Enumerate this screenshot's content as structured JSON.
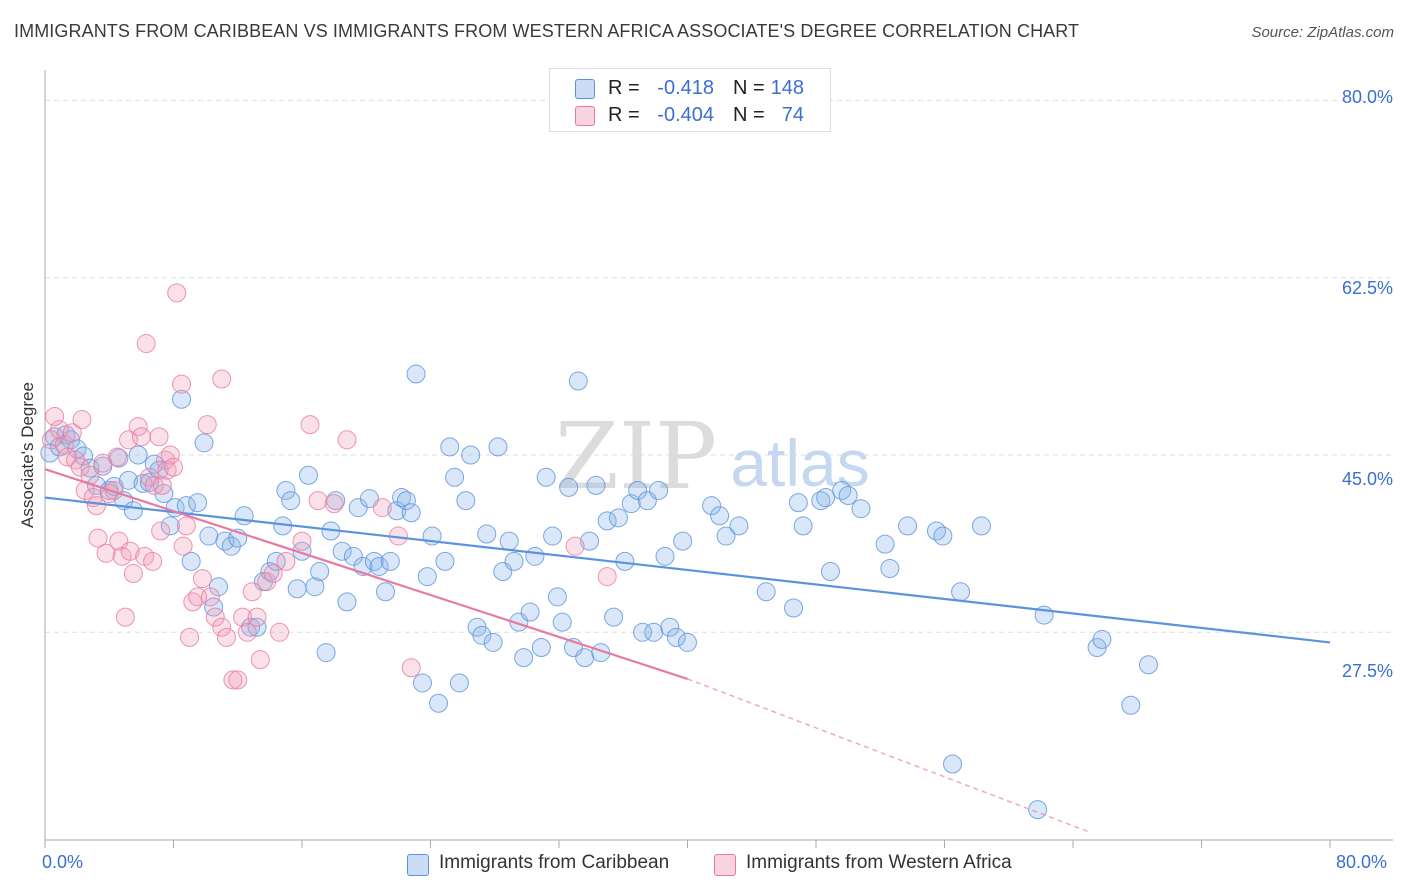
{
  "header": {
    "title": "IMMIGRANTS FROM CARIBBEAN VS IMMIGRANTS FROM WESTERN AFRICA ASSOCIATE'S DEGREE CORRELATION CHART",
    "source": "Source: ZipAtlas.com"
  },
  "watermark": {
    "zip": "ZIP",
    "atlas": "atlas"
  },
  "stats": [
    {
      "r_label": "R =",
      "r_value": "-0.418",
      "n_label": "N =",
      "n_value": "148",
      "color": "#8ab4e8"
    },
    {
      "r_label": "R =",
      "r_value": "-0.404",
      "n_label": "N =",
      "n_value": "74",
      "color": "#f0a0bc"
    }
  ],
  "legend": [
    {
      "label": "Immigrants from Caribbean",
      "color": "#8ab4e8"
    },
    {
      "label": "Immigrants from Western Africa",
      "color": "#f0a0bc"
    }
  ],
  "axes": {
    "ylabel": "Associate's Degree",
    "x_tick_left": "0.0%",
    "x_tick_right": "80.0%",
    "y_ticks": [
      "80.0%",
      "62.5%",
      "45.0%",
      "27.5%"
    ]
  },
  "chart_data": {
    "type": "scatter",
    "title": "IMMIGRANTS FROM CARIBBEAN VS IMMIGRANTS FROM WESTERN AFRICA ASSOCIATE'S DEGREE CORRELATION CHART",
    "xlabel": "",
    "ylabel": "Associate's Degree",
    "xlim": [
      0,
      80
    ],
    "ylim": [
      7,
      83
    ],
    "grid": true,
    "y_gridlines": [
      80.0,
      62.5,
      45.0,
      27.5
    ],
    "legend_position": "bottom",
    "series": [
      {
        "name": "Immigrants from Caribbean",
        "color": "#5b93dc",
        "trend": {
          "x": [
            0,
            80
          ],
          "y": [
            40.8,
            26.5
          ]
        },
        "points": [
          [
            0.3,
            45.2
          ],
          [
            0.6,
            46.8
          ],
          [
            0.9,
            45.8
          ],
          [
            1.3,
            47.0
          ],
          [
            1.6,
            46.5
          ],
          [
            2.0,
            45.6
          ],
          [
            2.4,
            44.9
          ],
          [
            2.8,
            43.7
          ],
          [
            3.2,
            42.0
          ],
          [
            3.6,
            43.9
          ],
          [
            4.0,
            41.5
          ],
          [
            4.3,
            41.9
          ],
          [
            4.6,
            44.7
          ],
          [
            4.9,
            40.5
          ],
          [
            5.2,
            42.5
          ],
          [
            5.5,
            39.5
          ],
          [
            5.8,
            45.0
          ],
          [
            6.1,
            42.2
          ],
          [
            6.5,
            42.3
          ],
          [
            6.8,
            44.1
          ],
          [
            7.1,
            43.5
          ],
          [
            7.4,
            41.2
          ],
          [
            7.8,
            38.0
          ],
          [
            8.1,
            39.8
          ],
          [
            8.5,
            50.5
          ],
          [
            8.8,
            40.0
          ],
          [
            9.1,
            34.5
          ],
          [
            9.5,
            40.3
          ],
          [
            9.9,
            46.2
          ],
          [
            10.2,
            37.0
          ],
          [
            10.5,
            30.0
          ],
          [
            10.8,
            32.0
          ],
          [
            11.2,
            36.5
          ],
          [
            11.6,
            36.0
          ],
          [
            12.0,
            36.8
          ],
          [
            12.4,
            39.0
          ],
          [
            12.8,
            28.0
          ],
          [
            13.2,
            28.0
          ],
          [
            13.6,
            32.5
          ],
          [
            14.0,
            33.5
          ],
          [
            14.4,
            34.5
          ],
          [
            14.8,
            38.0
          ],
          [
            15.0,
            41.5
          ],
          [
            15.3,
            40.5
          ],
          [
            15.7,
            31.8
          ],
          [
            16.0,
            35.5
          ],
          [
            16.4,
            43.0
          ],
          [
            16.8,
            32.0
          ],
          [
            17.1,
            33.5
          ],
          [
            17.5,
            25.5
          ],
          [
            17.8,
            37.5
          ],
          [
            18.1,
            40.5
          ],
          [
            18.5,
            35.5
          ],
          [
            18.8,
            30.5
          ],
          [
            19.2,
            35.0
          ],
          [
            19.5,
            39.8
          ],
          [
            19.8,
            34.0
          ],
          [
            20.2,
            40.7
          ],
          [
            20.5,
            34.5
          ],
          [
            20.8,
            34.0
          ],
          [
            21.2,
            31.5
          ],
          [
            21.5,
            34.5
          ],
          [
            21.9,
            39.5
          ],
          [
            22.2,
            40.8
          ],
          [
            22.5,
            40.5
          ],
          [
            22.8,
            39.3
          ],
          [
            23.1,
            53.0
          ],
          [
            23.5,
            22.5
          ],
          [
            23.8,
            33.0
          ],
          [
            24.1,
            37.0
          ],
          [
            24.5,
            20.5
          ],
          [
            24.9,
            34.5
          ],
          [
            25.2,
            45.8
          ],
          [
            25.5,
            42.8
          ],
          [
            25.8,
            22.5
          ],
          [
            26.2,
            40.5
          ],
          [
            26.5,
            45.0
          ],
          [
            26.9,
            28.0
          ],
          [
            27.2,
            27.2
          ],
          [
            27.5,
            37.2
          ],
          [
            27.9,
            26.5
          ],
          [
            28.2,
            45.8
          ],
          [
            28.5,
            33.5
          ],
          [
            28.9,
            36.5
          ],
          [
            29.2,
            34.5
          ],
          [
            29.5,
            28.5
          ],
          [
            29.8,
            25.0
          ],
          [
            30.2,
            29.5
          ],
          [
            30.5,
            35.0
          ],
          [
            30.9,
            26.0
          ],
          [
            31.2,
            42.8
          ],
          [
            31.6,
            37.0
          ],
          [
            31.9,
            31.0
          ],
          [
            32.2,
            28.5
          ],
          [
            32.6,
            41.8
          ],
          [
            32.9,
            26.0
          ],
          [
            33.2,
            52.3
          ],
          [
            33.6,
            25.0
          ],
          [
            33.9,
            36.5
          ],
          [
            34.3,
            42.0
          ],
          [
            34.6,
            25.5
          ],
          [
            35.0,
            38.5
          ],
          [
            35.4,
            29.0
          ],
          [
            35.7,
            38.8
          ],
          [
            36.1,
            34.5
          ],
          [
            36.5,
            40.2
          ],
          [
            36.9,
            41.5
          ],
          [
            37.2,
            27.5
          ],
          [
            37.5,
            40.5
          ],
          [
            37.9,
            27.5
          ],
          [
            38.2,
            41.5
          ],
          [
            38.6,
            35.0
          ],
          [
            38.9,
            28.0
          ],
          [
            39.3,
            27.0
          ],
          [
            39.7,
            36.5
          ],
          [
            40.0,
            26.5
          ],
          [
            41.5,
            40.0
          ],
          [
            42.0,
            39.0
          ],
          [
            42.4,
            37.0
          ],
          [
            43.2,
            38.0
          ],
          [
            44.9,
            31.5
          ],
          [
            46.6,
            29.9
          ],
          [
            46.9,
            40.3
          ],
          [
            47.2,
            38.0
          ],
          [
            48.3,
            40.5
          ],
          [
            48.6,
            40.8
          ],
          [
            48.9,
            33.5
          ],
          [
            49.6,
            41.5
          ],
          [
            50.0,
            41.0
          ],
          [
            50.8,
            39.7
          ],
          [
            52.3,
            36.2
          ],
          [
            52.6,
            33.8
          ],
          [
            53.7,
            38.0
          ],
          [
            55.5,
            37.5
          ],
          [
            55.9,
            37.0
          ],
          [
            57.0,
            31.5
          ],
          [
            58.3,
            38.0
          ],
          [
            62.2,
            29.2
          ],
          [
            65.5,
            26.0
          ],
          [
            65.8,
            26.8
          ],
          [
            68.7,
            24.3
          ],
          [
            67.6,
            20.3
          ],
          [
            56.5,
            14.5
          ],
          [
            61.8,
            10.0
          ]
        ]
      },
      {
        "name": "Immigrants from Western Africa",
        "color": "#e87aa0",
        "trend": {
          "x": [
            0,
            40
          ],
          "y": [
            43.6,
            22.9
          ]
        },
        "trend_extension": {
          "x": [
            40,
            65
          ],
          "y": [
            22.9,
            7.8
          ]
        },
        "points": [
          [
            0.4,
            46.5
          ],
          [
            0.6,
            48.8
          ],
          [
            0.9,
            47.5
          ],
          [
            1.2,
            46.0
          ],
          [
            1.4,
            44.8
          ],
          [
            1.7,
            47.2
          ],
          [
            1.9,
            44.5
          ],
          [
            2.2,
            43.8
          ],
          [
            2.5,
            41.5
          ],
          [
            2.3,
            48.5
          ],
          [
            2.8,
            43.0
          ],
          [
            3.0,
            40.8
          ],
          [
            3.2,
            40.0
          ],
          [
            3.3,
            36.8
          ],
          [
            3.6,
            44.2
          ],
          [
            3.8,
            35.3
          ],
          [
            4.0,
            41.2
          ],
          [
            4.3,
            41.5
          ],
          [
            4.5,
            44.8
          ],
          [
            4.6,
            36.5
          ],
          [
            4.8,
            35.0
          ],
          [
            5.0,
            29.0
          ],
          [
            5.2,
            46.5
          ],
          [
            5.3,
            35.5
          ],
          [
            5.5,
            33.3
          ],
          [
            5.8,
            47.8
          ],
          [
            6.0,
            46.8
          ],
          [
            6.2,
            35.0
          ],
          [
            6.3,
            56.0
          ],
          [
            6.5,
            42.8
          ],
          [
            6.8,
            42.0
          ],
          [
            6.7,
            34.5
          ],
          [
            7.1,
            46.8
          ],
          [
            7.3,
            42.0
          ],
          [
            7.5,
            44.5
          ],
          [
            7.2,
            37.5
          ],
          [
            7.6,
            43.5
          ],
          [
            7.8,
            45.0
          ],
          [
            8.0,
            43.8
          ],
          [
            8.2,
            61.0
          ],
          [
            8.5,
            52.0
          ],
          [
            8.6,
            36.0
          ],
          [
            8.8,
            38.0
          ],
          [
            9.0,
            27.0
          ],
          [
            9.2,
            30.5
          ],
          [
            9.5,
            31.0
          ],
          [
            9.8,
            32.8
          ],
          [
            10.1,
            48.0
          ],
          [
            10.3,
            31.0
          ],
          [
            10.6,
            29.0
          ],
          [
            11.0,
            28.0
          ],
          [
            11.3,
            27.0
          ],
          [
            11.0,
            52.5
          ],
          [
            11.7,
            22.8
          ],
          [
            12.0,
            22.8
          ],
          [
            12.3,
            29.0
          ],
          [
            12.6,
            27.5
          ],
          [
            12.9,
            31.5
          ],
          [
            13.2,
            29.0
          ],
          [
            13.4,
            24.8
          ],
          [
            13.8,
            32.5
          ],
          [
            14.2,
            33.3
          ],
          [
            14.6,
            27.5
          ],
          [
            15.0,
            34.5
          ],
          [
            16.0,
            36.5
          ],
          [
            16.5,
            48.0
          ],
          [
            17.0,
            40.5
          ],
          [
            18.0,
            40.2
          ],
          [
            18.8,
            46.5
          ],
          [
            21.0,
            39.8
          ],
          [
            22.0,
            37.0
          ],
          [
            22.8,
            24.0
          ],
          [
            33.0,
            36.0
          ],
          [
            35.0,
            33.0
          ]
        ]
      }
    ]
  }
}
